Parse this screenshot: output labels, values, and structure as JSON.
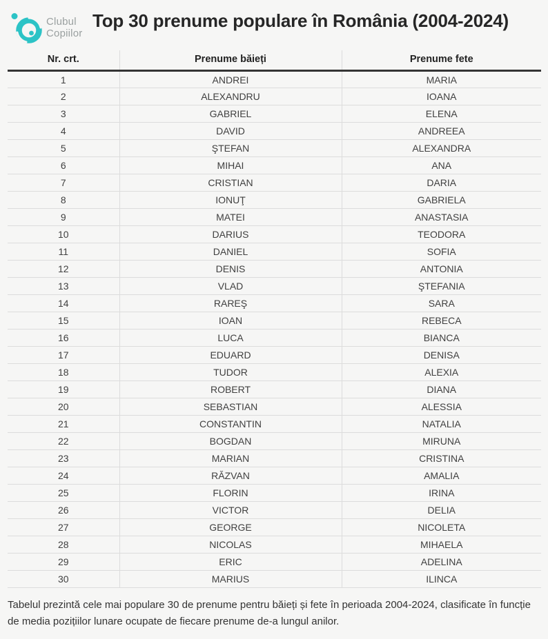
{
  "brand": {
    "line1": "Clubul",
    "line2": "Copiilor"
  },
  "header": {
    "title": "Top 30 prenume populare în România (2004-2024)"
  },
  "chart_data": {
    "type": "table",
    "title": "Top 30 prenume populare în România (2004-2024)",
    "columns": [
      "Nr. crt.",
      "Prenume băieți",
      "Prenume fete"
    ],
    "rows": [
      [
        "1",
        "ANDREI",
        "MARIA"
      ],
      [
        "2",
        "ALEXANDRU",
        "IOANA"
      ],
      [
        "3",
        "GABRIEL",
        "ELENA"
      ],
      [
        "4",
        "DAVID",
        "ANDREEA"
      ],
      [
        "5",
        "ŞTEFAN",
        "ALEXANDRA"
      ],
      [
        "6",
        "MIHAI",
        "ANA"
      ],
      [
        "7",
        "CRISTIAN",
        "DARIA"
      ],
      [
        "8",
        "IONUŢ",
        "GABRIELA"
      ],
      [
        "9",
        "MATEI",
        "ANASTASIA"
      ],
      [
        "10",
        "DARIUS",
        "TEODORA"
      ],
      [
        "11",
        "DANIEL",
        "SOFIA"
      ],
      [
        "12",
        "DENIS",
        "ANTONIA"
      ],
      [
        "13",
        "VLAD",
        "ŞTEFANIA"
      ],
      [
        "14",
        "RAREŞ",
        "SARA"
      ],
      [
        "15",
        "IOAN",
        "REBECA"
      ],
      [
        "16",
        "LUCA",
        "BIANCA"
      ],
      [
        "17",
        "EDUARD",
        "DENISA"
      ],
      [
        "18",
        "TUDOR",
        "ALEXIA"
      ],
      [
        "19",
        "ROBERT",
        "DIANA"
      ],
      [
        "20",
        "SEBASTIAN",
        "ALESSIA"
      ],
      [
        "21",
        "CONSTANTIN",
        "NATALIA"
      ],
      [
        "22",
        "BOGDAN",
        "MIRUNA"
      ],
      [
        "23",
        "MARIAN",
        "CRISTINA"
      ],
      [
        "24",
        "RĂZVAN",
        "AMALIA"
      ],
      [
        "25",
        "FLORIN",
        "IRINA"
      ],
      [
        "26",
        "VICTOR",
        "DELIA"
      ],
      [
        "27",
        "GEORGE",
        "NICOLETA"
      ],
      [
        "28",
        "NICOLAS",
        "MIHAELA"
      ],
      [
        "29",
        "ERIC",
        "ADELINA"
      ],
      [
        "30",
        "MARIUS",
        "ILINCA"
      ]
    ],
    "caption": "Tabelul prezintă cele mai populare 30 de prenume pentru băieți și fete în perioada 2004-2024, clasificate în funcție de media pozițiilor lunare ocupate de fiecare prenume de-a lungul anilor."
  },
  "colors": {
    "accent_teal": "#2cc3c6",
    "background": "#f6f6f5",
    "header_rule": "#343434",
    "grid_line": "#dcdcdc",
    "title_text": "#262626",
    "cell_text": "#404040",
    "brand_text": "#9aa0a0"
  }
}
